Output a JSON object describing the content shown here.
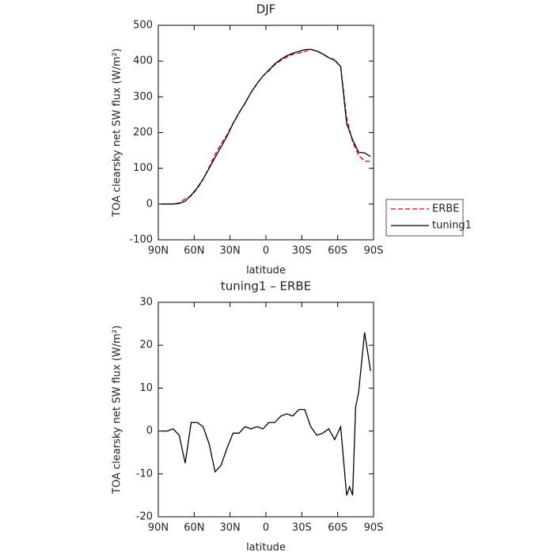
{
  "chart_data": [
    {
      "type": "line",
      "title": "DJF",
      "xlabel": "latitude",
      "ylabel": "TOA clearsky net SW flux (W/m²)",
      "x": [
        87.5,
        82.5,
        77.5,
        72.5,
        67.5,
        62.5,
        57.5,
        52.5,
        47.5,
        42.5,
        37.5,
        32.5,
        27.5,
        22.5,
        17.5,
        12.5,
        7.5,
        2.5,
        -2.5,
        -7.5,
        -12.5,
        -17.5,
        -22.5,
        -27.5,
        -32.5,
        -37.5,
        -42.5,
        -47.5,
        -52.5,
        -57.5,
        -62.5,
        -67.5,
        -72.5,
        -77.5,
        -82.5,
        -87.5
      ],
      "series": [
        {
          "name": "ERBE",
          "color": "#e00000",
          "line_style": "dashed",
          "values": [
            0,
            0,
            0,
            3,
            15,
            23,
            43,
            69,
            103,
            139,
            168,
            194,
            226,
            256,
            281,
            312,
            336,
            358,
            373,
            390,
            402,
            411,
            419,
            422,
            427,
            432,
            429,
            420,
            409,
            404,
            384,
            240,
            174,
            136,
            120,
            119
          ]
        },
        {
          "name": "tuning1",
          "color": "#000000",
          "line_style": "solid",
          "values": [
            0,
            0,
            0,
            2,
            8,
            25,
            45,
            70,
            100,
            130,
            160,
            190,
            225,
            255,
            282,
            312,
            337,
            358,
            375,
            392,
            405,
            415,
            422,
            427,
            432,
            433,
            428,
            420,
            410,
            402,
            385,
            225,
            180,
            145,
            143,
            133
          ]
        }
      ],
      "xlim": [
        90,
        -90
      ],
      "xticks": [
        {
          "value": 90,
          "label": "90N"
        },
        {
          "value": 60,
          "label": "60N"
        },
        {
          "value": 30,
          "label": "30N"
        },
        0,
        {
          "value": -30,
          "label": "30S"
        },
        {
          "value": -60,
          "label": "60S"
        },
        {
          "value": -90,
          "label": "90S"
        }
      ],
      "ylim": [
        -100,
        500
      ],
      "yticks": [
        -100,
        0,
        100,
        200,
        300,
        400,
        500
      ],
      "legend": "right"
    },
    {
      "type": "line",
      "title": "tuning1 – ERBE",
      "xlabel": "latitude",
      "ylabel": "TOA clearsky net SW flux (W/m²)",
      "x": [
        87.5,
        82.5,
        77.5,
        72.5,
        67.5,
        62.5,
        57.5,
        52.5,
        47.5,
        42.5,
        37.5,
        32.5,
        27.5,
        22.5,
        17.5,
        12.5,
        7.5,
        2.5,
        -2.5,
        -7.5,
        -12.5,
        -17.5,
        -22.5,
        -27.5,
        -32.5,
        -37.5,
        -42.5,
        -47.5,
        -52.5,
        -57.5,
        -62.5,
        -67.5,
        -70,
        -72.5,
        -75,
        -77.5,
        -82.5,
        -87.5
      ],
      "values": [
        0,
        0,
        0.5,
        -1,
        -7.5,
        2,
        2,
        1,
        -3,
        -9.5,
        -8,
        -4,
        -0.5,
        -0.5,
        1,
        0.5,
        1,
        0.5,
        2,
        2,
        3.5,
        4,
        3.5,
        5,
        5,
        1,
        -1,
        -0.5,
        0.5,
        -2,
        1,
        -15,
        -13,
        -15,
        5.5,
        9,
        23,
        14
      ],
      "color": "#000000",
      "xlim": [
        90,
        -90
      ],
      "xticks": [
        {
          "value": 90,
          "label": "90N"
        },
        {
          "value": 60,
          "label": "60N"
        },
        {
          "value": 30,
          "label": "30N"
        },
        0,
        {
          "value": -30,
          "label": "30S"
        },
        {
          "value": -60,
          "label": "60S"
        },
        {
          "value": -90,
          "label": "90S"
        }
      ],
      "ylim": [
        -20,
        30
      ],
      "yticks": [
        -20,
        -10,
        0,
        10,
        20,
        30
      ]
    }
  ]
}
